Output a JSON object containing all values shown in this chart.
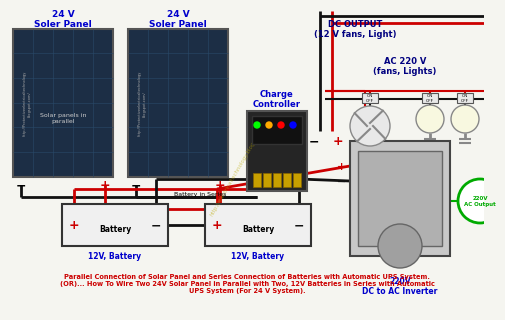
{
  "bg_color": "#f5f5f0",
  "footer_text": "Parallel Connection of Solar Panel and Series Connection of Batteries with Automatic UPS System.\n(OR)... How To Wire Two 24V Solar Panel in Parallel with Two, 12V Batteries in Series with Automatic\nUPS System (For 24 V System).",
  "footer_color": "#cc0000",
  "panel1_label": "24 V\nSoler Panel",
  "panel2_label": "24 V\nSoler Panel",
  "panel_label_color": "#0000cc",
  "parallel_text": "Solar panels in\nparallel",
  "charge_controller_label": "Charge\nController",
  "charge_controller_color": "#0000cc",
  "dc_output_label": "DC OUTPUT\n(12 V fans, Light)",
  "dc_output_color": "#000080",
  "ac_output_label": "AC 220 V\n(fans, Lights)",
  "ac_output_color": "#000080",
  "battery_label": "Battery",
  "battery_series_text": "Battery in Series",
  "batt1_label": "12V, Battery",
  "batt2_label": "12V, Battery",
  "batt_label_color": "#0000cc",
  "inverter_label": "220V\nDC to AC Inverter",
  "inverter_color": "#0000cc",
  "ac_output_circle": "220V\nAC Output",
  "ac_output_circle_color": "#00aa00",
  "wire_red": "#cc0000",
  "wire_black": "#111111",
  "url_text": "http://electricaltechnology.blogspot.com/"
}
